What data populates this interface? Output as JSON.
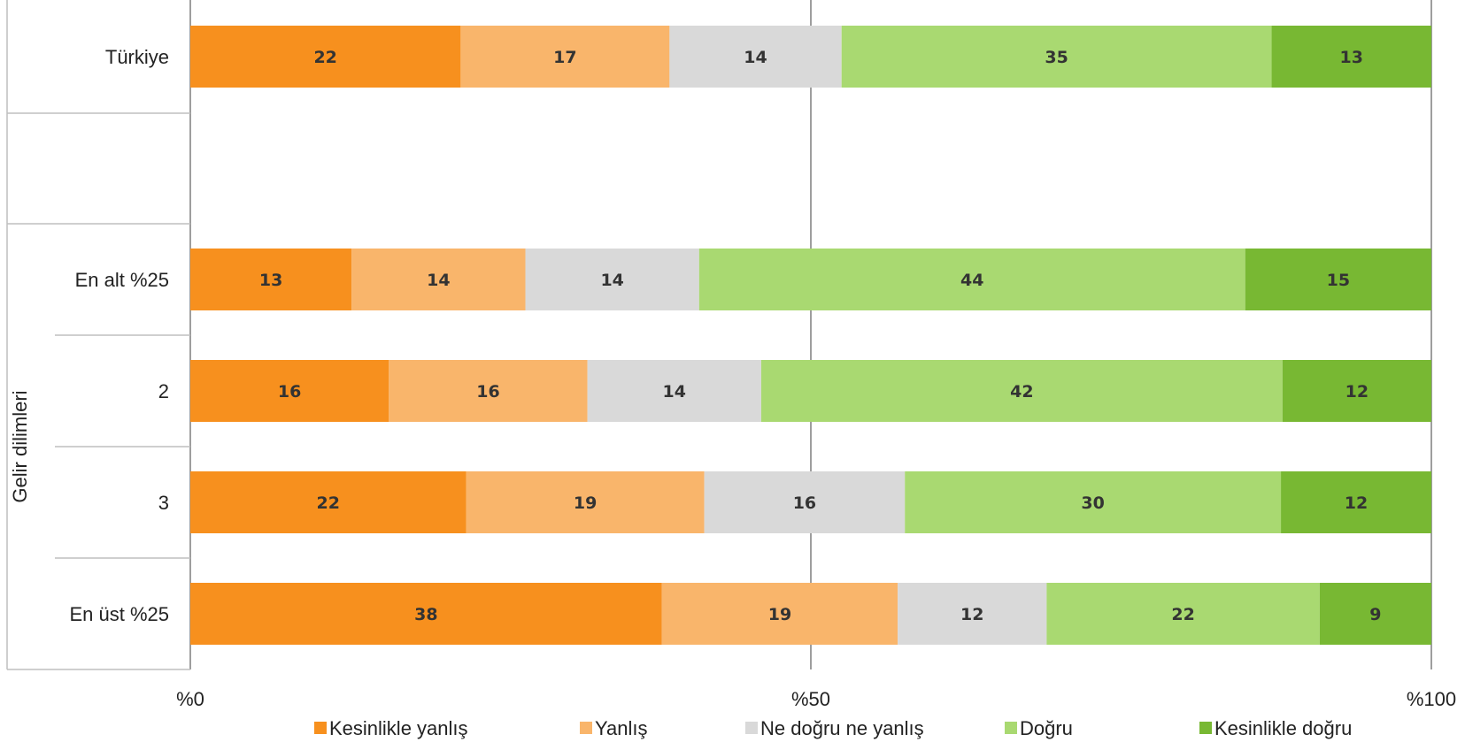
{
  "chart_data": {
    "type": "bar",
    "orientation": "horizontal",
    "stacked": true,
    "normalized": true,
    "categories": [
      "Türkiye",
      "En alt %25",
      "2",
      "3",
      "En üst %25"
    ],
    "group_label": "Gelir dilimleri",
    "group_members": [
      "En alt %25",
      "2",
      "3",
      "En üst %25"
    ],
    "series": [
      {
        "name": "Kesinlikle yanlış",
        "color": "#F7901E",
        "values": [
          22,
          13,
          16,
          22,
          38
        ]
      },
      {
        "name": "Yanlış",
        "color": "#F9B56B",
        "values": [
          17,
          14,
          16,
          19,
          19
        ]
      },
      {
        "name": "Ne doğru ne yanlış",
        "color": "#D9D9D9",
        "values": [
          14,
          14,
          14,
          16,
          12
        ]
      },
      {
        "name": "Doğru",
        "color": "#A9D971",
        "values": [
          35,
          44,
          42,
          30,
          22
        ]
      },
      {
        "name": "Kesinlikle doğru",
        "color": "#78B833",
        "values": [
          13,
          15,
          12,
          12,
          9
        ]
      }
    ],
    "x_ticks": [
      "%0",
      "%50",
      "%100"
    ],
    "xlim": [
      0,
      100
    ],
    "grid": "vertical at 0, 50, 100",
    "legend": "bottom"
  }
}
